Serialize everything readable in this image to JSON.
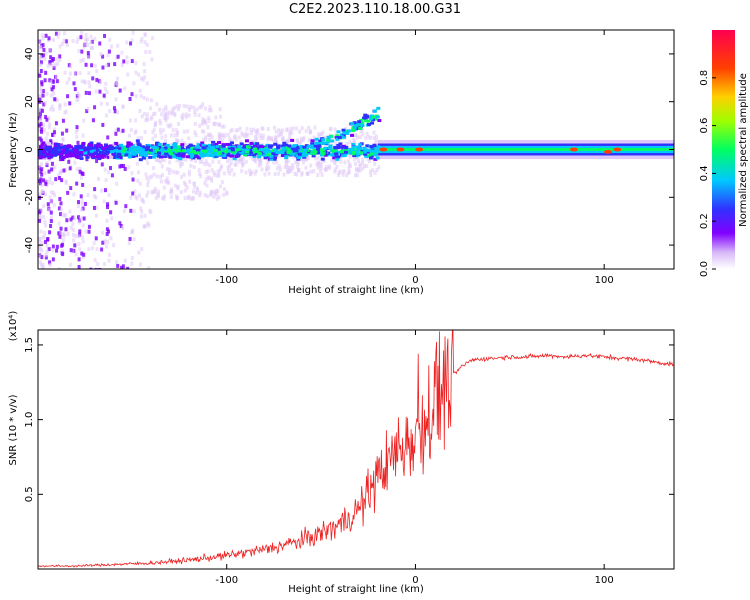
{
  "figure_title": "C2E2.2023.110.18.00.G31",
  "chart_data": [
    {
      "type": "heatmap",
      "xlabel": "Height of straight line (km)",
      "ylabel": "Frequency (Hz)",
      "xlim": [
        -200,
        137
      ],
      "ylim": [
        -50,
        50
      ],
      "x_ticks": [
        -100,
        0,
        100
      ],
      "y_ticks": [
        -40,
        -20,
        0,
        20,
        40
      ],
      "colorbar": {
        "label": "Normalized spectral amplitude",
        "range": [
          0.0,
          1.0
        ],
        "ticks": [
          "0.0",
          "0.2",
          "0.4",
          "0.6",
          "0.8"
        ],
        "colors": [
          "#ffffff",
          "#e0c8f8",
          "#8000ff",
          "#3030ff",
          "#00c8ff",
          "#00ff60",
          "#a0ff00",
          "#ffd000",
          "#ff4000",
          "#ff0050"
        ]
      },
      "features": {
        "noisy_region_x": [
          -200,
          -20
        ],
        "diagonal_rise": {
          "x": [
            -60,
            -20
          ],
          "freq": [
            0,
            15
          ]
        },
        "flat_band": {
          "x": [
            -20,
            137
          ],
          "freq_center": 0,
          "amplitude": 0.55
        },
        "high_spots": [
          {
            "x": -17,
            "freq": 0
          },
          {
            "x": -8,
            "freq": 0
          },
          {
            "x": 2,
            "freq": 0
          },
          {
            "x": 84,
            "freq": 0
          },
          {
            "x": 102,
            "freq": -1
          },
          {
            "x": 107,
            "freq": 0
          }
        ]
      }
    },
    {
      "type": "line",
      "xlabel": "Height of straight line (km)",
      "ylabel": "SNR (10 * v/v)",
      "y_multiplier": "(x10⁴)",
      "xlim": [
        -200,
        137
      ],
      "ylim": [
        0,
        1.6
      ],
      "x_ticks": [
        -100,
        0,
        100
      ],
      "y_ticks": [
        "0.5",
        "1.0",
        "1.5"
      ],
      "color": "#ee2222",
      "series": [
        {
          "x": [
            -200,
            -180,
            -160,
            -140,
            -120,
            -100,
            -80,
            -60,
            -50,
            -40,
            -30,
            -25,
            -20,
            -15,
            -10,
            -5,
            0,
            5,
            10,
            15,
            20,
            25,
            30,
            40,
            50,
            60,
            70,
            80,
            90,
            100,
            110,
            120,
            130,
            137
          ],
          "y": [
            0.02,
            0.02,
            0.03,
            0.04,
            0.06,
            0.09,
            0.13,
            0.19,
            0.24,
            0.3,
            0.4,
            0.5,
            0.62,
            0.7,
            0.8,
            0.85,
            0.92,
            1.0,
            1.1,
            1.2,
            1.3,
            1.36,
            1.4,
            1.41,
            1.42,
            1.42,
            1.43,
            1.42,
            1.43,
            1.42,
            1.41,
            1.4,
            1.38,
            1.37
          ]
        }
      ]
    }
  ]
}
